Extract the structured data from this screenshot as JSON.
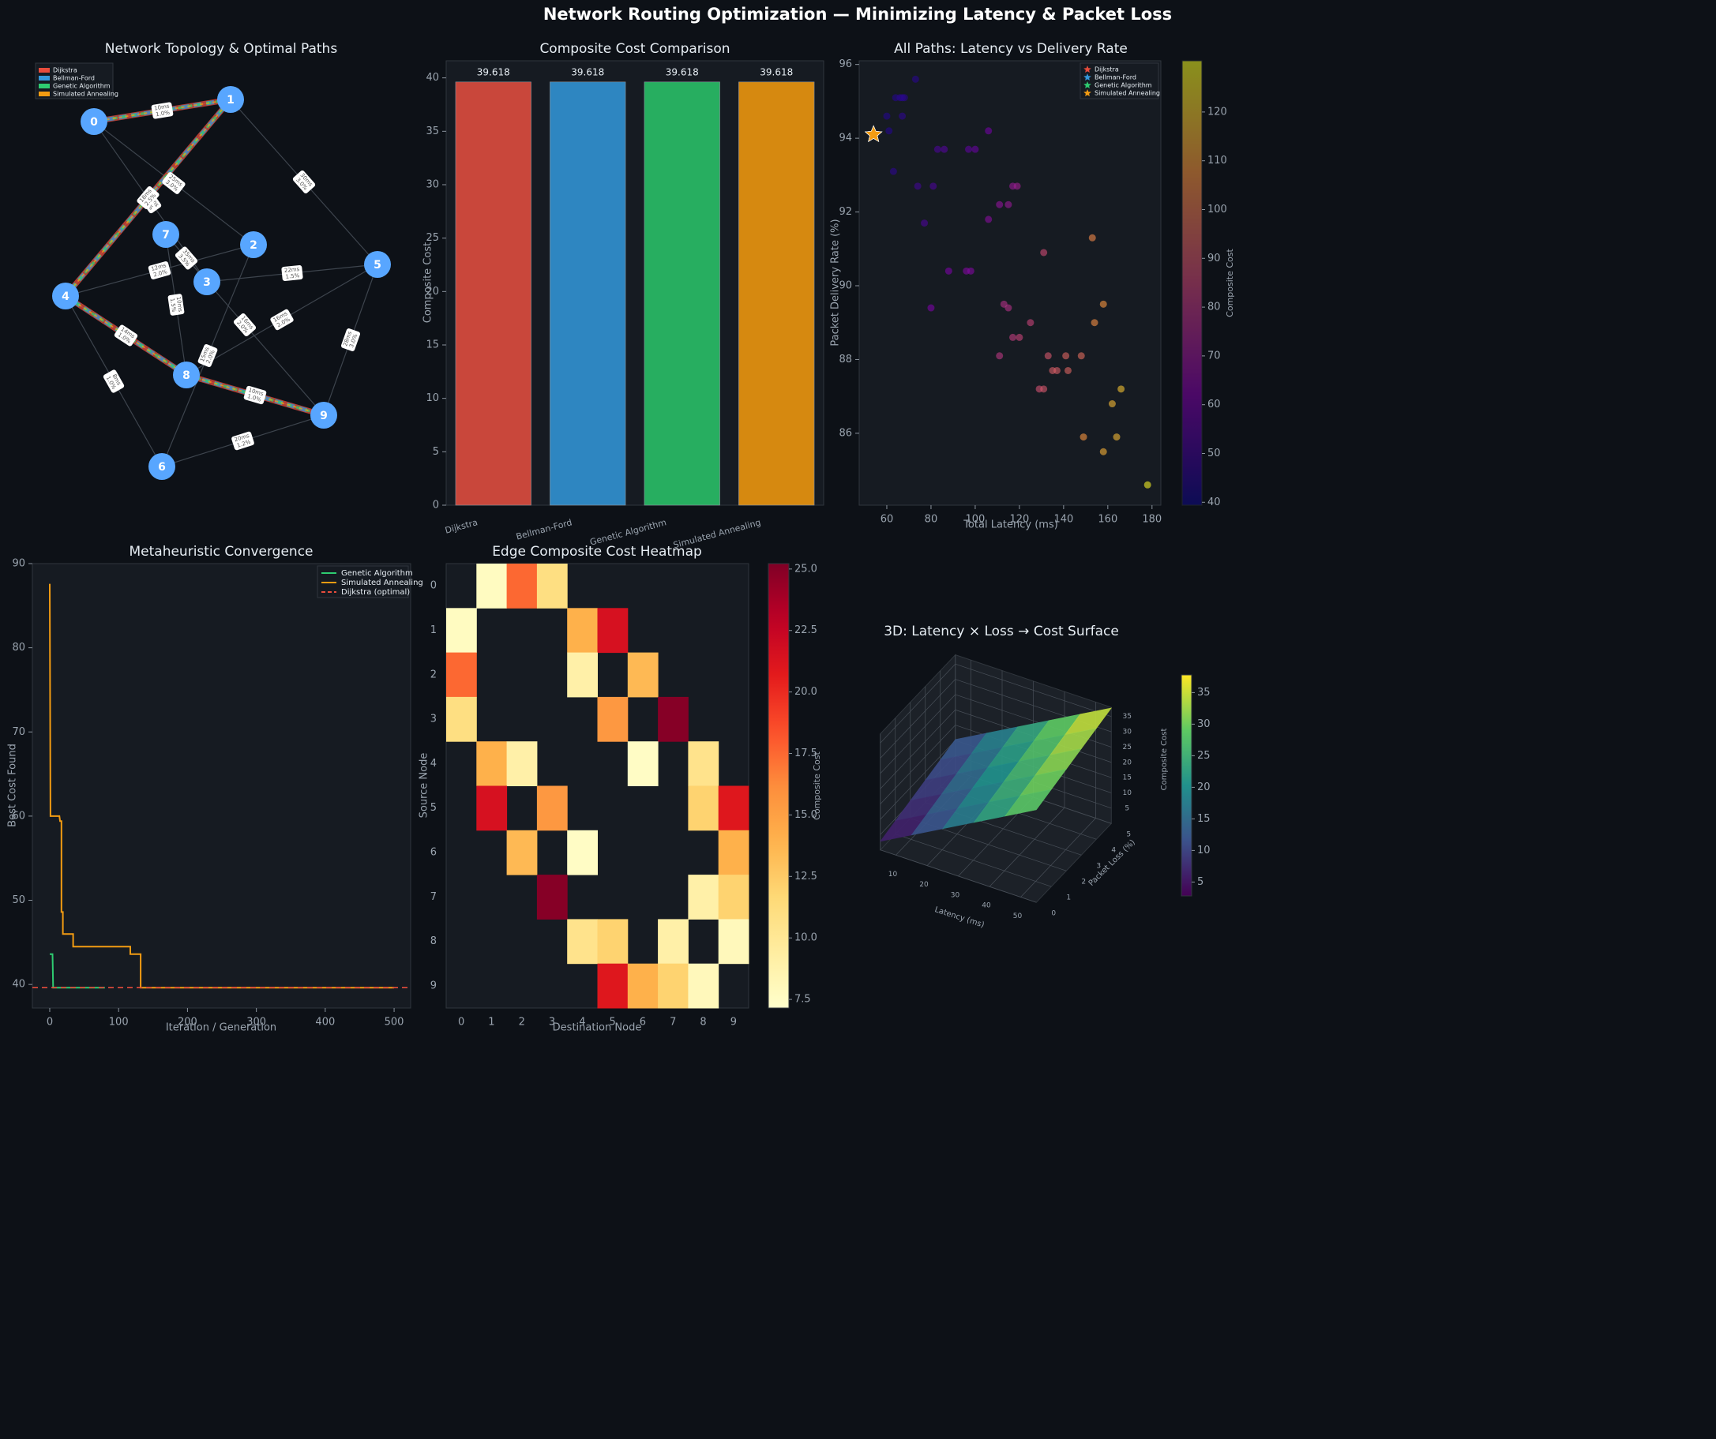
{
  "title": "Network Routing Optimization — Minimizing Latency & Packet Loss",
  "chart_data": [
    {
      "type": "network",
      "title": "Network Topology & Optimal Paths",
      "nodes": [
        "0",
        "1",
        "2",
        "3",
        "4",
        "5",
        "6",
        "7",
        "8",
        "9"
      ],
      "node_color": "#58a6ff",
      "edges": [
        {
          "from": 0,
          "to": 1,
          "latency": "10ms",
          "loss": "1.0%"
        },
        {
          "from": 0,
          "to": 2,
          "latency": "25ms",
          "loss": "3.0%"
        },
        {
          "from": 0,
          "to": 3,
          "latency": "18ms",
          "loss": "2.0%"
        },
        {
          "from": 1,
          "to": 4,
          "latency": "18ms",
          "loss": "2.5%"
        },
        {
          "from": 1,
          "to": 5,
          "latency": "30ms",
          "loss": "3.0%"
        },
        {
          "from": 2,
          "to": 4,
          "latency": "12ms",
          "loss": "2.0%"
        },
        {
          "from": 2,
          "to": 6,
          "latency": "15ms",
          "loss": "2.0%"
        },
        {
          "from": 3,
          "to": 5,
          "latency": "22ms",
          "loss": "1.5%"
        },
        {
          "from": 3,
          "to": 7,
          "latency": "35ms",
          "loss": "3.5%"
        },
        {
          "from": 4,
          "to": 6,
          "latency": "8ms",
          "loss": "1.0%"
        },
        {
          "from": 4,
          "to": 8,
          "latency": "14ms",
          "loss": "1.0%"
        },
        {
          "from": 5,
          "to": 8,
          "latency": "16ms",
          "loss": "2.0%"
        },
        {
          "from": 5,
          "to": 9,
          "latency": "28ms",
          "loss": "3.0%"
        },
        {
          "from": 6,
          "to": 9,
          "latency": "20ms",
          "loss": "1.2%"
        },
        {
          "from": 7,
          "to": 8,
          "latency": "10ms",
          "loss": "1.5%"
        },
        {
          "from": 7,
          "to": 9,
          "latency": "16ms",
          "loss": "2.0%"
        },
        {
          "from": 8,
          "to": 9,
          "latency": "10ms",
          "loss": "1.0%"
        }
      ],
      "series": [
        {
          "name": "Dijkstra",
          "color": "#e74c3c",
          "path": [
            0,
            1,
            4,
            8,
            9
          ]
        },
        {
          "name": "Bellman-Ford",
          "color": "#3498db",
          "path": [
            0,
            1,
            4,
            8,
            9
          ]
        },
        {
          "name": "Genetic Algorithm",
          "color": "#2ecc71",
          "path": [
            0,
            1,
            4,
            8,
            9
          ]
        },
        {
          "name": "Simulated Annealing",
          "color": "#f39c12",
          "path": [
            0,
            1,
            4,
            8,
            9
          ]
        }
      ]
    },
    {
      "type": "bar",
      "title": "Composite Cost Comparison",
      "ylabel": "Composite Cost",
      "categories": [
        "Dijkstra",
        "Bellman-Ford",
        "Genetic Algorithm",
        "Simulated Annealing"
      ],
      "values": [
        39.618,
        39.618,
        39.618,
        39.618
      ],
      "colors": [
        "#c9473b",
        "#2e86c1",
        "#27ae60",
        "#d68910"
      ],
      "ylim": [
        0,
        41.6
      ],
      "yticks": [
        0,
        5,
        10,
        15,
        20,
        25,
        30,
        35,
        40
      ]
    },
    {
      "type": "scatter",
      "title": "All Paths: Latency vs Delivery Rate",
      "xlabel": "Total Latency (ms)",
      "ylabel": "Packet Delivery Rate (%)",
      "x": [
        73,
        60,
        64,
        66,
        68,
        67,
        67,
        61,
        63,
        74,
        81,
        77,
        83,
        86,
        97,
        100,
        106,
        88,
        96,
        98,
        80,
        106,
        111,
        115,
        117,
        119,
        113,
        115,
        125,
        131,
        117,
        120,
        111,
        133,
        141,
        148,
        135,
        137,
        142,
        129,
        131,
        153,
        158,
        154,
        166,
        162,
        149,
        164,
        158,
        178
      ],
      "values": [
        95.6,
        94.6,
        95.1,
        95.1,
        95.1,
        95.1,
        94.6,
        94.2,
        93.1,
        92.7,
        92.7,
        91.7,
        93.7,
        93.7,
        93.7,
        93.7,
        94.2,
        90.4,
        90.4,
        90.4,
        89.4,
        91.8,
        92.2,
        92.2,
        92.7,
        92.7,
        89.5,
        89.4,
        89.0,
        90.9,
        88.6,
        88.6,
        88.1,
        88.1,
        88.1,
        88.1,
        87.7,
        87.7,
        87.7,
        87.2,
        87.2,
        91.3,
        89.5,
        89.0,
        87.2,
        86.8,
        85.9,
        85.9,
        85.5,
        84.6
      ],
      "cost": [
        45,
        44,
        44,
        45,
        45,
        45,
        46,
        44,
        46,
        50,
        52,
        52,
        52,
        54,
        56,
        58,
        60,
        62,
        64,
        64,
        62,
        66,
        68,
        70,
        70,
        72,
        78,
        78,
        84,
        86,
        82,
        84,
        80,
        90,
        94,
        96,
        92,
        92,
        94,
        88,
        90,
        104,
        108,
        106,
        118,
        116,
        108,
        116,
        114,
        128
      ],
      "colormap": "plasma",
      "clim": [
        39.4,
        130.5
      ],
      "cticks": [
        40,
        50,
        60,
        70,
        80,
        90,
        100,
        110,
        120
      ],
      "clabel": "Composite Cost",
      "xlim": [
        47.5,
        184
      ],
      "ylim": [
        84.05,
        96.1
      ],
      "xticks": [
        60,
        80,
        100,
        120,
        140,
        160,
        180
      ],
      "yticks": [
        86,
        88,
        90,
        92,
        94,
        96
      ],
      "series": [
        {
          "name": "Dijkstra",
          "color": "#e74c3c",
          "x": [
            54
          ],
          "values": [
            94.1
          ]
        },
        {
          "name": "Bellman-Ford",
          "color": "#3498db",
          "x": [
            54
          ],
          "values": [
            94.1
          ]
        },
        {
          "name": "Genetic Algorithm",
          "color": "#2ecc71",
          "x": [
            54
          ],
          "values": [
            94.1
          ]
        },
        {
          "name": "Simulated Annealing",
          "color": "#f39c12",
          "x": [
            54
          ],
          "values": [
            94.1
          ]
        }
      ],
      "legend": "upper right"
    },
    {
      "type": "line",
      "title": "Metaheuristic Convergence",
      "xlabel": "Iteration / Generation",
      "ylabel": "Best Cost Found",
      "xlim": [
        -25.2,
        524
      ],
      "ylim": [
        37.2,
        90
      ],
      "xticks": [
        0,
        100,
        200,
        300,
        400,
        500
      ],
      "yticks": [
        40,
        50,
        60,
        70,
        80,
        90
      ],
      "series": [
        {
          "name": "Genetic Algorithm",
          "color": "#2ecc71",
          "x": [
            0,
            4,
            5,
            80
          ],
          "values": [
            43.6,
            43.6,
            39.618,
            39.618
          ]
        },
        {
          "name": "Simulated Annealing",
          "color": "#f39c12",
          "x": [
            0,
            1,
            14,
            15,
            17,
            17,
            19,
            19,
            34,
            34,
            117,
            117,
            132,
            132,
            500
          ],
          "values": [
            87.6,
            60.0,
            60.0,
            59.4,
            59.4,
            48.6,
            48.6,
            46.0,
            46.0,
            44.5,
            44.5,
            43.6,
            43.6,
            39.618,
            39.618
          ]
        },
        {
          "name": "Dijkstra (optimal)",
          "color": "#e74c3c",
          "hline": 39.618,
          "dashed": true
        }
      ],
      "legend": "upper right"
    },
    {
      "type": "heatmap",
      "title": "Edge Composite Cost Heatmap",
      "xlabel": "Destination Node",
      "ylabel": "Source Node",
      "categories": [
        "0",
        "1",
        "2",
        "3",
        "4",
        "5",
        "6",
        "7",
        "8",
        "9"
      ],
      "values": [
        [
          null,
          7.7,
          17.5,
          11.0,
          null,
          null,
          null,
          null,
          null,
          null
        ],
        [
          7.7,
          null,
          null,
          null,
          14.0,
          21.5,
          null,
          null,
          null,
          null
        ],
        [
          17.5,
          null,
          null,
          null,
          9.0,
          null,
          13.5,
          null,
          null,
          null
        ],
        [
          11.0,
          null,
          null,
          null,
          null,
          15.5,
          null,
          25.0,
          null,
          null
        ],
        [
          null,
          14.0,
          9.0,
          null,
          null,
          null,
          7.5,
          null,
          10.5,
          null
        ],
        [
          null,
          21.5,
          null,
          15.5,
          null,
          null,
          null,
          null,
          12.0,
          21.0
        ],
        [
          null,
          null,
          13.5,
          null,
          7.5,
          null,
          null,
          null,
          null,
          14.0
        ],
        [
          null,
          null,
          null,
          25.0,
          null,
          null,
          null,
          null,
          9.0,
          12.0
        ],
        [
          null,
          null,
          null,
          null,
          10.5,
          12.0,
          null,
          9.0,
          null,
          8.0
        ],
        [
          null,
          null,
          null,
          null,
          null,
          21.0,
          14.0,
          12.0,
          8.0,
          null
        ]
      ],
      "colormap": "YlOrRd",
      "clim": [
        7.15,
        25.22
      ],
      "cticks": [
        7.5,
        {
          "value": 10,
          "label": "10.0"
        },
        12.5,
        {
          "value": 15,
          "label": "15.0"
        },
        17.5,
        {
          "value": 20,
          "label": "20.0"
        },
        22.5,
        {
          "value": 25,
          "label": "25.0"
        }
      ],
      "clabel": "Composite Cost"
    },
    {
      "type": "surface",
      "title": "3D: Latency × Loss → Cost Surface",
      "xlabel": "Latency (ms)",
      "ylabel": "Packet Loss (%)",
      "zlabel": "Composite Cost",
      "x": [
        5,
        15,
        25,
        35,
        45,
        55
      ],
      "y": [
        0,
        1,
        2,
        3,
        4,
        5
      ],
      "z": [
        [
          2.8,
          8.3,
          13.8,
          19.3,
          24.8,
          30.3
        ],
        [
          4.3,
          9.8,
          15.3,
          20.8,
          26.3,
          31.8
        ],
        [
          5.8,
          11.3,
          16.8,
          22.3,
          27.8,
          33.3
        ],
        [
          7.3,
          12.8,
          18.3,
          23.8,
          29.3,
          34.8
        ],
        [
          8.8,
          14.3,
          19.8,
          25.3,
          30.8,
          36.3
        ],
        [
          10.3,
          15.8,
          21.3,
          26.8,
          32.3,
          37.8
        ]
      ],
      "xlim": [
        5,
        55
      ],
      "ylim": [
        0,
        5
      ],
      "zlim": [
        0,
        38
      ],
      "xticks": [
        10,
        20,
        30,
        40,
        50
      ],
      "yticks": [
        0,
        1,
        2,
        3,
        4,
        5
      ],
      "zticks": [
        5,
        10,
        15,
        20,
        25,
        30,
        35
      ],
      "colormap": "viridis",
      "clim": [
        2.8,
        37.8
      ],
      "cticks": [
        5,
        10,
        15,
        20,
        25,
        30,
        35
      ]
    }
  ]
}
